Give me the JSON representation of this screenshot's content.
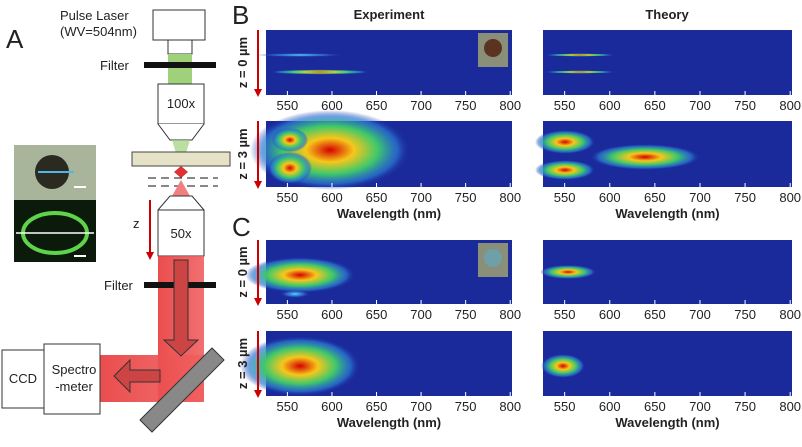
{
  "panel_a": {
    "label": "A",
    "laser": "Pulse Laser",
    "wavelength": "(WV=504nm)",
    "filter_top": "Filter",
    "objective_top": "100x",
    "z_label": "z",
    "objective_bottom": "50x",
    "filter_bottom": "Filter",
    "ccd": "CCD",
    "spectrometer": [
      "Spectro",
      "-meter"
    ]
  },
  "panel_b": {
    "label": "B"
  },
  "panel_c": {
    "label": "C"
  },
  "columns": [
    "Experiment",
    "Theory"
  ],
  "rows": [
    "z = 0 µm",
    "z = 3 µm"
  ],
  "x_ticks": [
    550,
    600,
    650,
    700,
    750,
    800
  ],
  "x_label": "Wavelength (nm)"
}
